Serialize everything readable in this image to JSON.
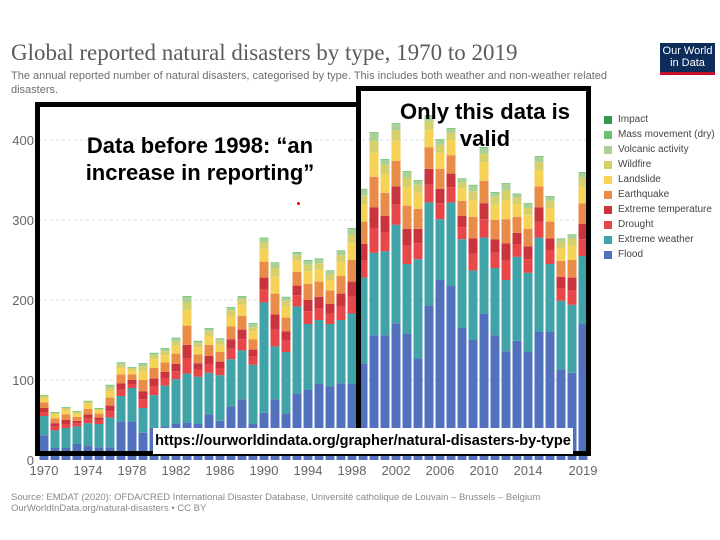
{
  "header": {
    "title": "Global reported natural disasters by type, 1970 to 2019",
    "subtitle": "The annual reported number of natural disasters, categorised by type. This includes both weather and non-weather related disasters.",
    "logo_text": "Our World in Data"
  },
  "footer": {
    "source": "Source: EMDAT (2020): OFDA/CRED International Disaster Database, Université catholique de Louvain – Brussels – Belgium",
    "link": "OurWorldInData.org/natural-disasters • CC BY"
  },
  "annotations": {
    "left_box": "Data before 1998: “an increase in reporting”",
    "right_box": "Only this data is valid",
    "url": "https://ourworldindata.org/grapher/natural-disasters-by-type"
  },
  "chart_data": {
    "type": "bar",
    "stacked": true,
    "title": "Global reported natural disasters by type, 1970 to 2019",
    "xlabel": "",
    "ylabel": "",
    "ylim": [
      0,
      420
    ],
    "grid": true,
    "legend_position": "right",
    "yticks": [
      0,
      100,
      200,
      300,
      400
    ],
    "xtick_labels": [
      "1970",
      "1974",
      "1978",
      "1982",
      "1986",
      "1990",
      "1994",
      "1998",
      "2002",
      "2006",
      "2010",
      "2014",
      "2019"
    ],
    "x": [
      1970,
      1971,
      1972,
      1973,
      1974,
      1975,
      1976,
      1977,
      1978,
      1979,
      1980,
      1981,
      1982,
      1983,
      1984,
      1985,
      1986,
      1987,
      1988,
      1989,
      1990,
      1991,
      1992,
      1993,
      1994,
      1995,
      1996,
      1997,
      1998,
      1999,
      2000,
      2001,
      2002,
      2003,
      2004,
      2005,
      2006,
      2007,
      2008,
      2009,
      2010,
      2011,
      2012,
      2013,
      2014,
      2015,
      2016,
      2017,
      2018,
      2019
    ],
    "series": [
      {
        "name": "Flood",
        "color": "#5271bd",
        "values": [
          31,
          15,
          15,
          20,
          18,
          16,
          16,
          48,
          48,
          34,
          40,
          42,
          46,
          47,
          45,
          57,
          49,
          67,
          76,
          45,
          59,
          76,
          58,
          83,
          88,
          95,
          92,
          96,
          95,
          121,
          156,
          156,
          171,
          158,
          127,
          193,
          225,
          218,
          165,
          150,
          183,
          156,
          136,
          149,
          135,
          160,
          160,
          113,
          109,
          170
        ]
      },
      {
        "name": "Extreme weather",
        "color": "#3fa3a8",
        "values": [
          24,
          22,
          25,
          22,
          28,
          29,
          37,
          32,
          42,
          31,
          41,
          51,
          55,
          61,
          59,
          52,
          57,
          59,
          61,
          74,
          138,
          66,
          77,
          109,
          82,
          80,
          78,
          79,
          88,
          107,
          103,
          105,
          123,
          87,
          124,
          129,
          76,
          104,
          111,
          87,
          95,
          84,
          89,
          105,
          99,
          118,
          85,
          86,
          85,
          85
        ]
      },
      {
        "name": "Drought",
        "color": "#e8474a",
        "values": [
          5,
          5,
          5,
          4,
          6,
          4,
          8,
          8,
          5,
          11,
          11,
          9,
          10,
          19,
          9,
          11,
          9,
          13,
          14,
          10,
          16,
          21,
          14,
          14,
          16,
          15,
          13,
          17,
          21,
          22,
          30,
          23,
          25,
          23,
          20,
          22,
          20,
          19,
          15,
          21,
          23,
          19,
          24,
          16,
          17,
          20,
          17,
          16,
          18,
          21
        ]
      },
      {
        "name": "Extreme temperature",
        "color": "#c9343d",
        "values": [
          5,
          4,
          5,
          3,
          5,
          4,
          7,
          8,
          5,
          10,
          10,
          8,
          9,
          17,
          8,
          10,
          8,
          12,
          12,
          9,
          15,
          19,
          12,
          12,
          14,
          14,
          12,
          16,
          19,
          20,
          27,
          21,
          23,
          21,
          18,
          20,
          18,
          17,
          14,
          19,
          20,
          17,
          22,
          14,
          16,
          18,
          15,
          14,
          16,
          19
        ]
      },
      {
        "name": "Earthquake",
        "color": "#e98c4a",
        "values": [
          7,
          6,
          7,
          5,
          7,
          5,
          10,
          11,
          7,
          14,
          13,
          12,
          13,
          24,
          11,
          14,
          12,
          16,
          17,
          13,
          20,
          26,
          17,
          17,
          20,
          19,
          17,
          22,
          27,
          28,
          38,
          29,
          32,
          29,
          25,
          27,
          25,
          23,
          19,
          27,
          28,
          24,
          30,
          20,
          22,
          26,
          21,
          20,
          22,
          26
        ]
      },
      {
        "name": "Landslide",
        "color": "#f6d257",
        "values": [
          5,
          5,
          5,
          4,
          6,
          4,
          8,
          8,
          5,
          11,
          11,
          9,
          10,
          19,
          9,
          11,
          9,
          13,
          14,
          10,
          16,
          21,
          14,
          14,
          16,
          15,
          13,
          17,
          21,
          22,
          30,
          23,
          25,
          23,
          20,
          22,
          20,
          19,
          15,
          21,
          23,
          19,
          24,
          16,
          17,
          20,
          17,
          16,
          18,
          21
        ]
      },
      {
        "name": "Wildfire",
        "color": "#d5d06c",
        "values": [
          3,
          2,
          3,
          2,
          3,
          2,
          4,
          4,
          3,
          6,
          5,
          5,
          5,
          10,
          5,
          6,
          5,
          7,
          7,
          5,
          8,
          11,
          7,
          7,
          8,
          8,
          7,
          9,
          11,
          11,
          15,
          12,
          13,
          12,
          10,
          11,
          10,
          9,
          8,
          11,
          11,
          10,
          12,
          8,
          9,
          10,
          9,
          8,
          9,
          11
        ]
      },
      {
        "name": "Volcanic activity",
        "color": "#a9d197",
        "values": [
          0,
          0,
          0,
          0,
          0,
          0,
          3,
          2,
          0,
          3,
          2,
          3,
          4,
          7,
          2,
          3,
          2,
          3,
          3,
          4,
          5,
          6,
          4,
          3,
          5,
          5,
          4,
          5,
          7,
          7,
          10,
          6,
          8,
          7,
          5,
          6,
          6,
          5,
          4,
          7,
          7,
          5,
          8,
          4,
          5,
          7,
          5,
          3,
          4,
          6
        ]
      },
      {
        "name": "Mass movement (dry)",
        "color": "#6cbf6e",
        "values": [
          1,
          1,
          1,
          1,
          1,
          1,
          1,
          1,
          1,
          1,
          1,
          1,
          1,
          1,
          1,
          1,
          1,
          1,
          1,
          1,
          1,
          1,
          1,
          1,
          1,
          1,
          1,
          1,
          1,
          1,
          1,
          1,
          1,
          1,
          1,
          1,
          1,
          1,
          1,
          1,
          1,
          1,
          1,
          1,
          1,
          1,
          1,
          1,
          1,
          1
        ]
      },
      {
        "name": "Impact",
        "color": "#2f9a48",
        "values": [
          0,
          0,
          0,
          0,
          0,
          0,
          0,
          0,
          0,
          0,
          0,
          0,
          0,
          0,
          0,
          0,
          0,
          0,
          0,
          0,
          0,
          0,
          0,
          0,
          0,
          0,
          0,
          0,
          0,
          0,
          0,
          0,
          0,
          0,
          0,
          0,
          0,
          0,
          0,
          0,
          0,
          0,
          0,
          0,
          0,
          0,
          0,
          0,
          0,
          0
        ]
      }
    ],
    "legend_order": [
      "Impact",
      "Mass movement (dry)",
      "Volcanic activity",
      "Wildfire",
      "Landslide",
      "Earthquake",
      "Extreme temperature",
      "Drought",
      "Extreme weather",
      "Flood"
    ]
  }
}
